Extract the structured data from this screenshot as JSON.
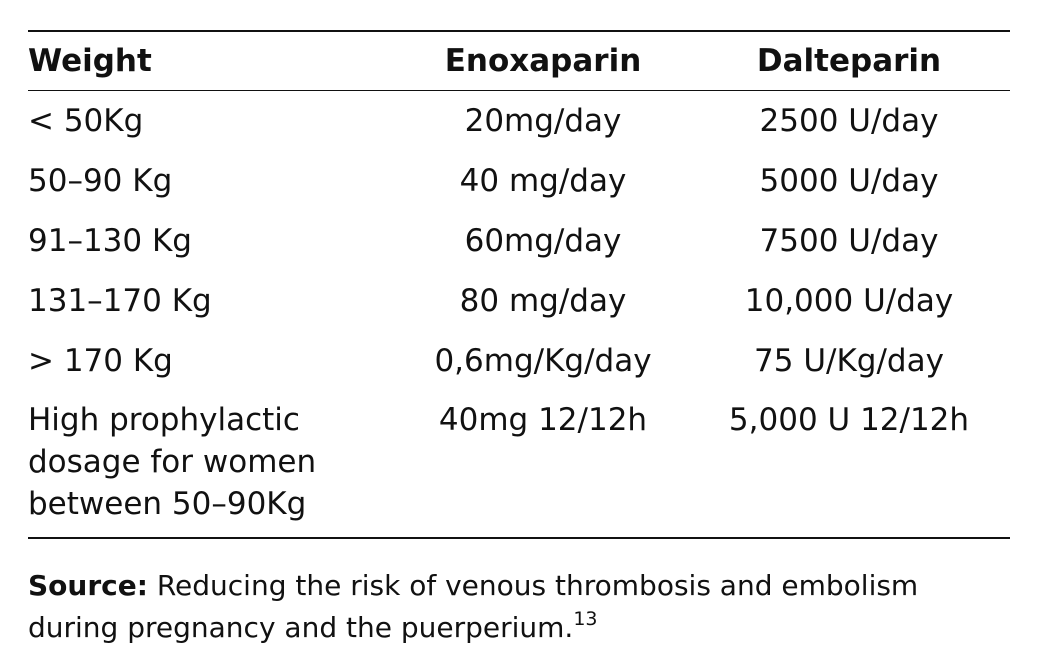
{
  "table": {
    "headers": [
      "Weight",
      "Enoxaparin",
      "Dalteparin"
    ],
    "rows": [
      [
        "< 50Kg",
        "20mg/day",
        "2500 U/day"
      ],
      [
        "50–90 Kg",
        "40 mg/day",
        "5000 U/day"
      ],
      [
        "91–130 Kg",
        "60mg/day",
        "7500 U/day"
      ],
      [
        "131–170 Kg",
        "80 mg/day",
        "10,000 U/day"
      ],
      [
        "> 170 Kg",
        "0,6mg/Kg/day",
        "75 U/Kg/day"
      ],
      [
        "High prophylactic dosage for women between 50–90Kg",
        "40mg 12/12h",
        "5,000 U 12/12h"
      ]
    ]
  },
  "source": {
    "label": "Source:",
    "text": " Reducing the risk of venous thrombosis and embolism during pregnancy and the puerperium.",
    "reference": "13"
  }
}
